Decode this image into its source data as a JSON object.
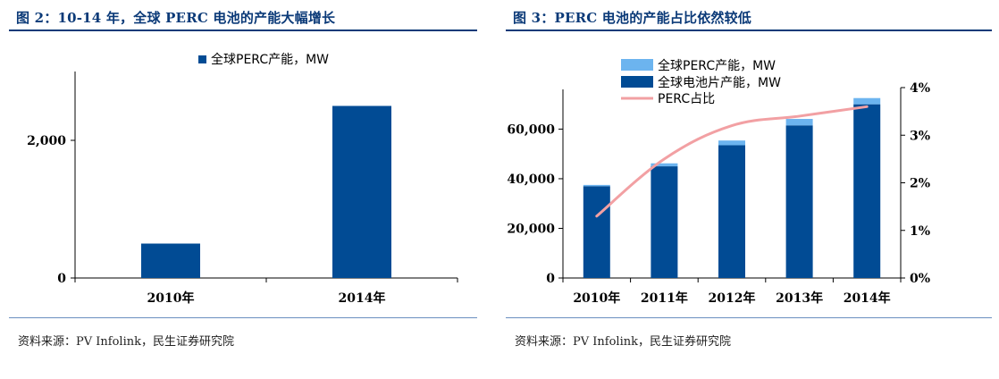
{
  "colors": {
    "title": "#0b3a78",
    "bar_dark": "#014b94",
    "bar_light": "#6cb4ef",
    "line_pink": "#f2a0a3"
  },
  "left": {
    "title": "图 2：10-14 年，全球 PERC 电池的产能大幅增长",
    "source": "资料来源：PV Infolink，民生证券研究院"
  },
  "right": {
    "title": "图 3：PERC 电池的产能占比依然较低",
    "source": "资料来源：PV Infolink，民生证券研究院"
  },
  "chart_data": [
    {
      "type": "bar",
      "categories": [
        "2010年",
        "2014年"
      ],
      "series": [
        {
          "name": "全球PERC产能，MW",
          "values": [
            500,
            2500
          ]
        }
      ],
      "y_ticks": [
        "0",
        "2,000"
      ],
      "y_tick_values": [
        0,
        2000
      ],
      "ylim": [
        0,
        3000
      ],
      "legend": "top-center"
    },
    {
      "type": "bar",
      "categories": [
        "2010年",
        "2011年",
        "2012年",
        "2013年",
        "2014年"
      ],
      "series": [
        {
          "name": "全球PERC产能，MW",
          "values": [
            500,
            1200,
            1900,
            2600,
            2500
          ],
          "stacked": true,
          "color": "#6cb4ef"
        },
        {
          "name": "全球电池片产能，MW",
          "values": [
            37000,
            45000,
            53500,
            61500,
            70000
          ],
          "stacked": true,
          "color": "#014b94"
        },
        {
          "name": "PERC占比",
          "type": "line",
          "axis": "right",
          "values": [
            1.3,
            2.5,
            3.2,
            3.4,
            3.6
          ],
          "color": "#f2a0a3"
        }
      ],
      "y_ticks": [
        "0",
        "20,000",
        "40,000",
        "60,000"
      ],
      "y_tick_values": [
        0,
        20000,
        40000,
        60000
      ],
      "ylim": [
        0,
        76000
      ],
      "y2_ticks": [
        "0%",
        "1%",
        "2%",
        "3%",
        "4%"
      ],
      "y2_tick_values": [
        0,
        1,
        2,
        3,
        4
      ],
      "y2lim": [
        0,
        4
      ],
      "legend": "top-left"
    }
  ]
}
